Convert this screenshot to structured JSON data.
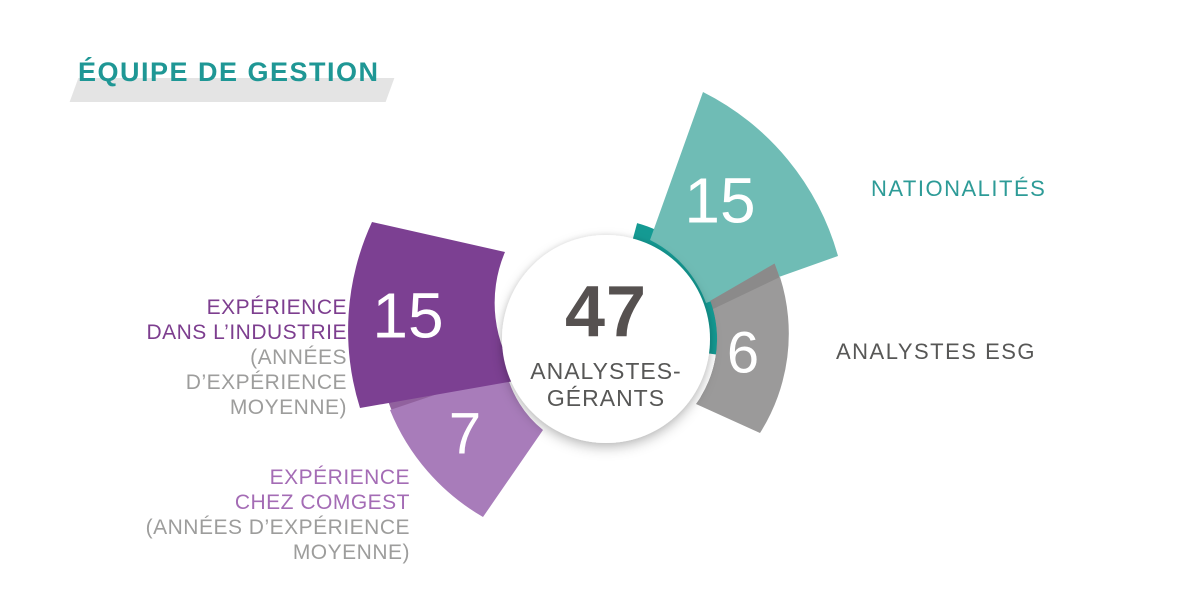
{
  "page": {
    "background": "#ffffff"
  },
  "title": {
    "text": "ÉQUIPE DE GESTION",
    "color": "#1f9795",
    "swoosh_color": "#e4e4e4"
  },
  "center": {
    "value": "47",
    "label_lines": [
      "ANALYSTES-",
      "GÉRANTS"
    ],
    "value_color": "#565150",
    "label_color": "#575756"
  },
  "labels": {
    "nationalites": {
      "text": "NATIONALITÉS",
      "color": "#2d9b97"
    },
    "esg": {
      "text": "ANALYSTES ESG",
      "color": "#575756"
    },
    "industrie": {
      "lines": [
        "EXPÉRIENCE",
        "DANS L’INDUSTRIE",
        "(ANNÉES",
        "D’EXPÉRIENCE",
        "MOYENNE)"
      ],
      "primary_color": "#7d3e8f",
      "secondary_color": "#9d9d9c"
    },
    "comgest": {
      "lines": [
        "EXPÉRIENCE",
        "CHEZ COMGEST",
        "(ANNÉES D’EXPÉRIENCE",
        "MOYENNE)"
      ],
      "primary_color": "#a46cb5",
      "secondary_color": "#9d9d9c"
    }
  },
  "chart_data": {
    "type": "pie",
    "title": "ÉQUIPE DE GESTION",
    "center_metric": {
      "value": 47,
      "label": "ANALYSTES-GÉRANTS"
    },
    "segments": [
      {
        "id": "nationalites",
        "value": 15,
        "label": "NATIONALITÉS",
        "color": "#6fbcb5",
        "accent_color": "#149a93"
      },
      {
        "id": "analystes-esg",
        "value": 6,
        "label": "ANALYSTES ESG",
        "color": "#9b9a9a",
        "shadow_color": "#8b8a8a"
      },
      {
        "id": "experience-industrie",
        "value": 15,
        "label": "EXPÉRIENCE DANS L’INDUSTRIE (ANNÉES D’EXPÉRIENCE MOYENNE)",
        "color": "#7c4092"
      },
      {
        "id": "experience-comgest",
        "value": 7,
        "label": "EXPÉRIENCE CHEZ COMGEST (ANNÉES D’EXPÉRIENCE MOYENNE)",
        "color": "#a87cba",
        "shadow_color": "#91619e"
      }
    ],
    "legend_position": "around",
    "grid": false,
    "value_text_color": "#ffffff",
    "center_circle_color": "#ffffff"
  }
}
